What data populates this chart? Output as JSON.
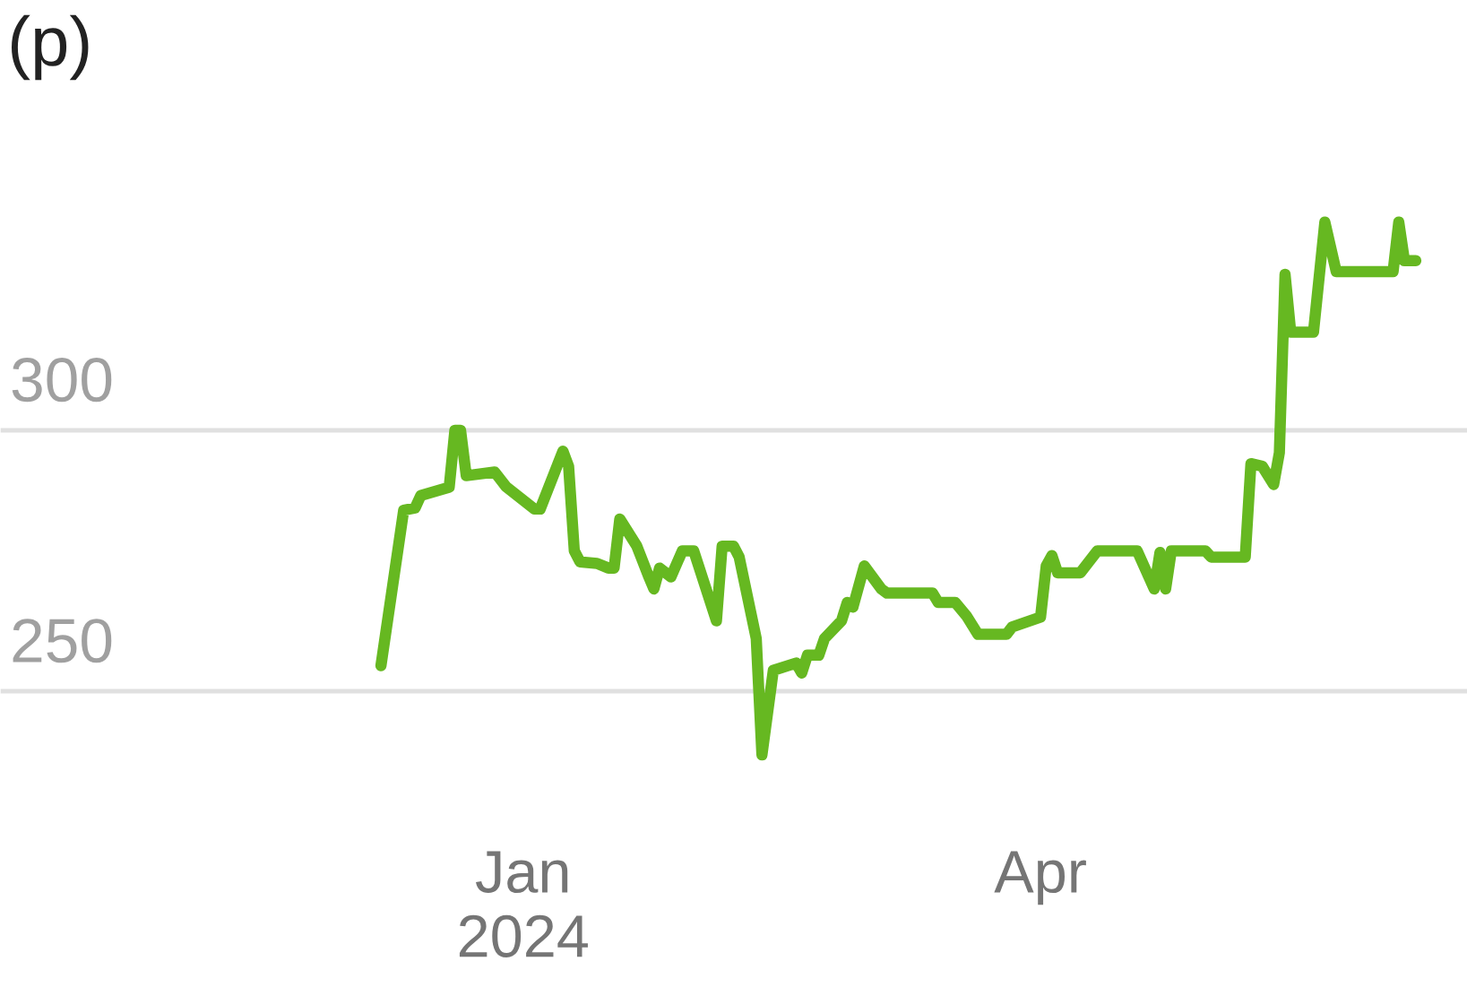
{
  "chart_data": {
    "type": "line",
    "ylabel": "(p)",
    "x": [
      "2023-12-07",
      "2023-12-11",
      "2023-12-13",
      "2023-12-14",
      "2023-12-19",
      "2023-12-20",
      "2023-12-21",
      "2023-12-22",
      "2023-12-27",
      "2023-12-29",
      "2024-01-03",
      "2024-01-04",
      "2024-01-08",
      "2024-01-09",
      "2024-01-10",
      "2024-01-11",
      "2024-01-14",
      "2024-01-16",
      "2024-01-17",
      "2024-01-18",
      "2024-01-21",
      "2024-01-23",
      "2024-01-24",
      "2024-01-25",
      "2024-01-27",
      "2024-01-29",
      "2024-01-31",
      "2024-02-04",
      "2024-02-05",
      "2024-02-07",
      "2024-02-08",
      "2024-02-11",
      "2024-02-12",
      "2024-02-14",
      "2024-02-18",
      "2024-02-19",
      "2024-02-20",
      "2024-02-22",
      "2024-02-23",
      "2024-02-26",
      "2024-02-27",
      "2024-02-28",
      "2024-03-01",
      "2024-03-04",
      "2024-03-05",
      "2024-03-13",
      "2024-03-14",
      "2024-03-17",
      "2024-03-19",
      "2024-03-21",
      "2024-03-26",
      "2024-03-27",
      "2024-04-01",
      "2024-04-02",
      "2024-04-03",
      "2024-04-04",
      "2024-04-08",
      "2024-04-11",
      "2024-04-18",
      "2024-04-21",
      "2024-04-22",
      "2024-04-23",
      "2024-04-24",
      "2024-04-30",
      "2024-05-01",
      "2024-05-07",
      "2024-05-08",
      "2024-05-10",
      "2024-05-12",
      "2024-05-13",
      "2024-05-14",
      "2024-05-15",
      "2024-05-19",
      "2024-05-21",
      "2024-05-23",
      "2024-06-02",
      "2024-06-03",
      "2024-06-04",
      "2024-06-06"
    ],
    "series": [
      {
        "color": "#66b821",
        "values": [
          254.9,
          284.7,
          285.1,
          287.5,
          289.1,
          300,
          300,
          291.3,
          292,
          289.2,
          284.9,
          284.9,
          296,
          293.1,
          276.9,
          274.8,
          274.5,
          273.6,
          273.6,
          283,
          277.8,
          272.2,
          269.6,
          273.6,
          271.9,
          276.9,
          276.9,
          263.5,
          277.8,
          277.8,
          275.7,
          260.1,
          237.8,
          254,
          255.4,
          253.5,
          256.9,
          256.9,
          260.1,
          263.5,
          267,
          266.1,
          274,
          269.6,
          268.8,
          268.8,
          267,
          267,
          264.4,
          260.9,
          260.9,
          262.3,
          264.2,
          274,
          276,
          272.7,
          272.7,
          276.9,
          276.9,
          269.6,
          276.6,
          269.6,
          276.9,
          276.9,
          275.7,
          275.7,
          293.6,
          293.1,
          289.6,
          295.7,
          329.9,
          318.8,
          318.8,
          339.9,
          330.4,
          330.4,
          339.9,
          332.5,
          332.5
        ]
      }
    ],
    "xlim": [
      "2023-10-01",
      "2024-06-15"
    ],
    "xticks": [
      {
        "value": "2024-01-01",
        "label": "Jan\n2024"
      },
      {
        "value": "2024-04-01",
        "label": "Apr"
      }
    ],
    "ylim": [
      225,
      350
    ],
    "yticks": [
      250,
      300
    ],
    "grid": "y",
    "line_style": "solid"
  }
}
